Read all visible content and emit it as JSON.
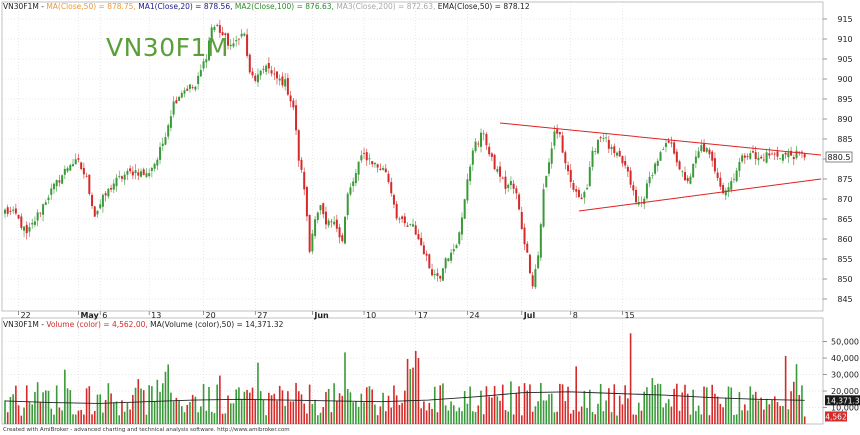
{
  "symbol": "VN30F1M",
  "legend": {
    "symbol": "VN30F1M",
    "ma_close_50": "MA(Close,50) = 878.75,",
    "ma1": "MA1(Close,20) = 878.56,",
    "ma2": "MA2(Close,100) = 876.63,",
    "ma3": "MA3(Close,200) = 872.63,",
    "ema": "EMA(Close,50) = 878.12"
  },
  "volume_legend": {
    "symbol": "VN30F1M",
    "volume": "Volume (color) = 4,562.00,",
    "ma_volume": "MA(Volume (color),50) = 14,371.32"
  },
  "footer": "Created with AmiBroker - advanced charting and technical analysis software. http://www.amibroker.com",
  "colors": {
    "up": "#3a9a3a",
    "down": "#d42a2a",
    "trendline": "#e02020",
    "grid": "#d0d0d0",
    "ma_line": "#222222",
    "legend_ma": "#e89a3a",
    "legend_ma1": "#1a1a8a",
    "legend_ma2": "#2a8a2a",
    "legend_ma3": "#aaaaaa",
    "price_tag": "#ffffff",
    "volume_tag": "#1a1a1a"
  },
  "chart_data": [
    {
      "type": "candlestick",
      "yticks": [
        845,
        850,
        855,
        860,
        865,
        870,
        875,
        880,
        885,
        890,
        895,
        900,
        905,
        910,
        915
      ],
      "ylim": [
        842,
        917
      ],
      "last_price_label": "880.5",
      "x_tick_labels": [
        "22",
        "May",
        "6",
        "13",
        "20",
        "27",
        "Jun",
        "10",
        "17",
        "24",
        "Jul",
        "8",
        "15"
      ],
      "x_tick_bar_index": [
        5,
        27,
        35,
        53,
        73,
        92,
        113,
        132,
        151,
        170,
        190,
        208,
        227
      ],
      "bold_tick_labels": [
        "May",
        "Jun",
        "Jul"
      ],
      "anchors": [
        [
          0,
          867
        ],
        [
          4,
          866
        ],
        [
          8,
          861
        ],
        [
          12,
          866
        ],
        [
          16,
          871
        ],
        [
          20,
          875
        ],
        [
          24,
          879
        ],
        [
          27,
          879
        ],
        [
          30,
          875
        ],
        [
          33,
          866
        ],
        [
          36,
          870
        ],
        [
          40,
          874
        ],
        [
          44,
          876
        ],
        [
          48,
          877
        ],
        [
          52,
          876
        ],
        [
          56,
          880
        ],
        [
          58,
          884
        ],
        [
          60,
          889
        ],
        [
          62,
          894
        ],
        [
          65,
          897
        ],
        [
          68,
          898
        ],
        [
          70,
          898
        ],
        [
          72,
          902
        ],
        [
          74,
          906
        ],
        [
          76,
          913
        ],
        [
          78,
          913
        ],
        [
          80,
          911
        ],
        [
          82,
          909
        ],
        [
          84,
          908
        ],
        [
          86,
          911
        ],
        [
          88,
          911
        ],
        [
          90,
          901
        ],
        [
          92,
          900
        ],
        [
          94,
          901
        ],
        [
          96,
          904
        ],
        [
          98,
          901
        ],
        [
          100,
          900
        ],
        [
          103,
          899
        ],
        [
          106,
          893
        ],
        [
          108,
          880
        ],
        [
          110,
          873
        ],
        [
          112,
          857
        ],
        [
          114,
          866
        ],
        [
          116,
          868
        ],
        [
          118,
          863
        ],
        [
          120,
          864
        ],
        [
          122,
          863
        ],
        [
          124,
          860
        ],
        [
          126,
          871
        ],
        [
          128,
          874
        ],
        [
          130,
          879
        ],
        [
          132,
          881
        ],
        [
          134,
          880
        ],
        [
          137,
          878
        ],
        [
          140,
          877
        ],
        [
          142,
          872
        ],
        [
          144,
          866
        ],
        [
          146,
          864
        ],
        [
          148,
          863
        ],
        [
          150,
          863
        ],
        [
          152,
          860
        ],
        [
          154,
          857
        ],
        [
          156,
          853
        ],
        [
          158,
          851
        ],
        [
          160,
          851
        ],
        [
          162,
          856
        ],
        [
          164,
          856
        ],
        [
          166,
          858
        ],
        [
          168,
          866
        ],
        [
          170,
          874
        ],
        [
          172,
          883
        ],
        [
          174,
          884
        ],
        [
          176,
          887
        ],
        [
          178,
          881
        ],
        [
          180,
          878
        ],
        [
          182,
          876
        ],
        [
          184,
          873
        ],
        [
          186,
          874
        ],
        [
          188,
          871
        ],
        [
          190,
          863
        ],
        [
          192,
          856
        ],
        [
          194,
          849
        ],
        [
          196,
          856
        ],
        [
          198,
          872
        ],
        [
          200,
          879
        ],
        [
          202,
          887
        ],
        [
          204,
          886
        ],
        [
          206,
          878
        ],
        [
          208,
          874
        ],
        [
          210,
          871
        ],
        [
          212,
          871
        ],
        [
          214,
          873
        ],
        [
          216,
          881
        ],
        [
          218,
          885
        ],
        [
          220,
          886
        ],
        [
          222,
          883
        ],
        [
          224,
          881
        ],
        [
          226,
          880
        ],
        [
          228,
          878
        ],
        [
          230,
          874
        ],
        [
          232,
          869
        ],
        [
          234,
          869
        ],
        [
          236,
          873
        ],
        [
          238,
          877
        ],
        [
          240,
          880
        ],
        [
          242,
          882
        ],
        [
          244,
          884
        ],
        [
          246,
          882
        ],
        [
          248,
          878
        ],
        [
          250,
          874
        ],
        [
          252,
          876
        ],
        [
          254,
          880
        ],
        [
          256,
          883
        ],
        [
          258,
          882
        ],
        [
          260,
          879
        ],
        [
          262,
          876
        ],
        [
          264,
          872
        ],
        [
          266,
          873
        ],
        [
          268,
          876
        ],
        [
          270,
          879
        ],
        [
          272,
          881
        ],
        [
          274,
          882
        ],
        [
          276,
          880
        ],
        [
          278,
          880
        ],
        [
          280,
          881
        ]
      ],
      "trendlines": [
        {
          "from": [
            182,
            889
          ],
          "to": [
            300,
            881
          ]
        },
        {
          "from": [
            211,
            867
          ],
          "to": [
            300,
            875
          ]
        }
      ]
    },
    {
      "type": "bar",
      "series": "volume",
      "yticks": [
        10000,
        20000,
        30000,
        40000,
        50000
      ],
      "ytick_labels": [
        "10,000",
        "20,000",
        "30,000",
        "40,000",
        "50,000"
      ],
      "ylim": [
        0,
        57000
      ],
      "last_volume_label": "4,562",
      "ma_label": "14,371.3",
      "ma_values": [
        14000,
        13000,
        12500,
        13500,
        14500,
        15000,
        14500,
        14000,
        13500,
        14500,
        16500,
        19000,
        19500,
        18500,
        17500,
        16000,
        15000,
        14371
      ]
    }
  ]
}
